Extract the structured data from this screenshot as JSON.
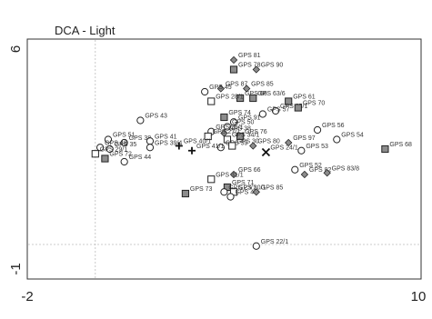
{
  "chart_data": {
    "type": "scatter",
    "title": "DCA - Light",
    "xlim": [
      -2,
      10
    ],
    "ylim": [
      -1,
      6
    ],
    "x_ticks": [
      "-2",
      "10"
    ],
    "y_ticks": [
      "6",
      "-1"
    ],
    "reference_lines": {
      "x": 0,
      "y": 0
    },
    "grid": false,
    "legend": "none",
    "colors": {
      "gray_fill": "#8c8c8c",
      "marker_stroke": "#222222",
      "dashed_line": "#bbbbbb",
      "frame": "#333333"
    },
    "points": [
      {
        "label": "GPS 81",
        "x": 4.3,
        "y": 5.8,
        "marker": "diamond"
      },
      {
        "label": "GPS 90",
        "x": 5.0,
        "y": 5.5,
        "marker": "diamond"
      },
      {
        "label": "GPS 78",
        "x": 4.3,
        "y": 5.5,
        "marker": "square-filled"
      },
      {
        "label": "GPS 87",
        "x": 3.9,
        "y": 4.9,
        "marker": "diamond"
      },
      {
        "label": "GPS 85",
        "x": 4.7,
        "y": 4.9,
        "marker": "diamond"
      },
      {
        "label": "GPS 45",
        "x": 3.4,
        "y": 4.8,
        "marker": "circle"
      },
      {
        "label": "GPS 66",
        "x": 4.5,
        "y": 4.6,
        "marker": "square-filled"
      },
      {
        "label": "GPS 63/6",
        "x": 4.9,
        "y": 4.6,
        "marker": "square-filled"
      },
      {
        "label": "GPS 61",
        "x": 6.0,
        "y": 4.5,
        "marker": "square-filled"
      },
      {
        "label": "GPS 28/1",
        "x": 3.6,
        "y": 4.5,
        "marker": "square-open"
      },
      {
        "label": "GPS 25/1",
        "x": 5.6,
        "y": 4.2,
        "marker": "circle"
      },
      {
        "label": "GPS 70",
        "x": 6.3,
        "y": 4.3,
        "marker": "square-filled"
      },
      {
        "label": "GPS 57",
        "x": 5.2,
        "y": 4.1,
        "marker": "circle"
      },
      {
        "label": "GPS 74",
        "x": 4.0,
        "y": 4.0,
        "marker": "square-filled"
      },
      {
        "label": "GPS 91",
        "x": 4.3,
        "y": 3.85,
        "marker": "circle"
      },
      {
        "label": "GPS 43",
        "x": 1.4,
        "y": 3.9,
        "marker": "circle"
      },
      {
        "label": "GPS 50",
        "x": 4.1,
        "y": 3.7,
        "marker": "circle"
      },
      {
        "label": "GPS 26/1",
        "x": 3.6,
        "y": 3.55,
        "marker": "circle"
      },
      {
        "label": "GPS 38",
        "x": 4.0,
        "y": 3.5,
        "marker": "diamond"
      },
      {
        "label": "GPS 27/1",
        "x": 3.5,
        "y": 3.4,
        "marker": "square-open"
      },
      {
        "label": "GPS 76",
        "x": 4.5,
        "y": 3.4,
        "marker": "square-filled"
      },
      {
        "label": "GPS 34/1",
        "x": 4.1,
        "y": 3.3,
        "marker": "square-open"
      },
      {
        "label": "GPS 56",
        "x": 6.9,
        "y": 3.6,
        "marker": "circle"
      },
      {
        "label": "GPS 54",
        "x": 7.5,
        "y": 3.3,
        "marker": "circle"
      },
      {
        "label": "GPS 68",
        "x": 9.0,
        "y": 3.0,
        "marker": "square-filled"
      },
      {
        "label": "GPS 97",
        "x": 6.0,
        "y": 3.2,
        "marker": "diamond"
      },
      {
        "label": "GPS 80",
        "x": 4.9,
        "y": 3.1,
        "marker": "diamond"
      },
      {
        "label": "GPS 53",
        "x": 6.4,
        "y": 2.95,
        "marker": "circle"
      },
      {
        "label": "GPS 59",
        "x": 3.9,
        "y": 3.05,
        "marker": "circle"
      },
      {
        "label": "GPS 30",
        "x": 4.25,
        "y": 3.1,
        "marker": "square-open"
      },
      {
        "label": "GPS 51",
        "x": 0.4,
        "y": 3.3,
        "marker": "circle"
      },
      {
        "label": "GPS 38",
        "x": 0.9,
        "y": 3.2,
        "marker": "circle"
      },
      {
        "label": "GPS 41",
        "x": 1.7,
        "y": 3.25,
        "marker": "circle"
      },
      {
        "label": "GPS 48",
        "x": 0.15,
        "y": 3.05,
        "marker": "circle"
      },
      {
        "label": "GPS 35",
        "x": 0.45,
        "y": 3.0,
        "marker": "circle"
      },
      {
        "label": "GPS 39/4",
        "x": 1.7,
        "y": 3.05,
        "marker": "circle"
      },
      {
        "label": "GPS 40/1",
        "x": 2.6,
        "y": 3.1,
        "marker": "cross"
      },
      {
        "label": "GPS 41/1",
        "x": 3.0,
        "y": 2.95,
        "marker": "cross"
      },
      {
        "label": "GPS 24/1",
        "x": 5.3,
        "y": 2.9,
        "marker": "x"
      },
      {
        "label": "GPS 29/1",
        "x": 0.0,
        "y": 2.85,
        "marker": "square-open"
      },
      {
        "label": "GPS 72",
        "x": 0.3,
        "y": 2.7,
        "marker": "square-filled"
      },
      {
        "label": "GPS 44",
        "x": 0.9,
        "y": 2.6,
        "marker": "circle"
      },
      {
        "label": "GPS 52",
        "x": 6.2,
        "y": 2.35,
        "marker": "circle"
      },
      {
        "label": "GPS 66",
        "x": 4.3,
        "y": 2.2,
        "marker": "diamond"
      },
      {
        "label": "GPS 82",
        "x": 6.5,
        "y": 2.2,
        "marker": "diamond"
      },
      {
        "label": "GPS 83/8",
        "x": 7.2,
        "y": 2.25,
        "marker": "diamond"
      },
      {
        "label": "GPS 31/1",
        "x": 3.6,
        "y": 2.05,
        "marker": "square-open"
      },
      {
        "label": "GPS 71",
        "x": 4.1,
        "y": 1.8,
        "marker": "square-filled"
      },
      {
        "label": "GPS 23/1",
        "x": 4.0,
        "y": 1.65,
        "marker": "circle"
      },
      {
        "label": "GPS 30/1",
        "x": 4.3,
        "y": 1.65,
        "marker": "square-open"
      },
      {
        "label": "GPS 49",
        "x": 4.2,
        "y": 1.5,
        "marker": "circle"
      },
      {
        "label": "GPS 85",
        "x": 5.0,
        "y": 1.65,
        "marker": "diamond"
      },
      {
        "label": "GPS 73",
        "x": 2.8,
        "y": 1.6,
        "marker": "square-filled"
      },
      {
        "label": "GPS 22/1",
        "x": 5.0,
        "y": -0.05,
        "marker": "circle"
      }
    ]
  }
}
